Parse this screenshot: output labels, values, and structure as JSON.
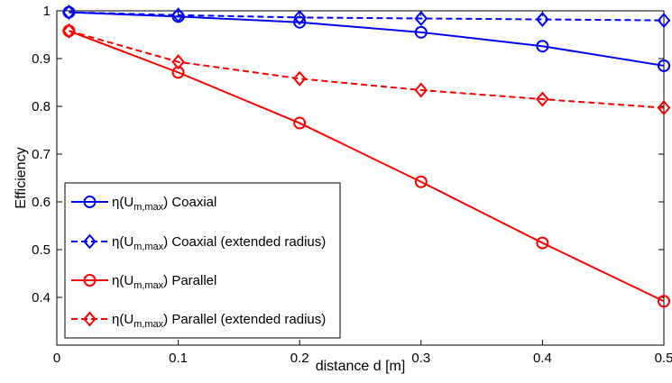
{
  "chart_data": {
    "type": "line",
    "xlabel": "distance d [m]",
    "ylabel": "Efficiency",
    "xlim": [
      0,
      0.5
    ],
    "ylim": [
      0.3,
      1.0
    ],
    "xticks": [
      0,
      0.1,
      0.2,
      0.3,
      0.4,
      0.5
    ],
    "xtick_labels": [
      "0",
      "0.1",
      "0.2",
      "0.3",
      "0.4",
      "0.5"
    ],
    "yticks": [
      0.4,
      0.5,
      0.6,
      0.7,
      0.8,
      0.9,
      1.0
    ],
    "ytick_labels": [
      "0.4",
      "0.5",
      "0.6",
      "0.7",
      "0.8",
      "0.9",
      "1"
    ],
    "x": [
      0.01,
      0.1,
      0.2,
      0.3,
      0.4,
      0.5
    ],
    "grid": false,
    "legend_position": "bottom-left",
    "series": [
      {
        "name": "η(U m,max) Coaxial",
        "legend_main": "η(U",
        "legend_sub": "m,max",
        "legend_rest": ") Coaxial",
        "color": "#0000ff",
        "line_style": "solid",
        "marker": "circle",
        "values": [
          0.997,
          0.988,
          0.976,
          0.955,
          0.926,
          0.885
        ]
      },
      {
        "name": "η(U m,max) Coaxial (extended radius)",
        "legend_main": "η(U",
        "legend_sub": "m,max",
        "legend_rest": ") Coaxial (extended radius)",
        "color": "#0000ff",
        "line_style": "dashed",
        "marker": "diamond",
        "values": [
          0.997,
          0.991,
          0.986,
          0.984,
          0.982,
          0.98
        ]
      },
      {
        "name": "η(U m,max) Parallel",
        "legend_main": "η(U",
        "legend_sub": "m,max",
        "legend_rest": ") Parallel",
        "color": "#ff0000",
        "line_style": "solid",
        "marker": "circle",
        "values": [
          0.958,
          0.871,
          0.765,
          0.642,
          0.514,
          0.392
        ]
      },
      {
        "name": "η(U m,max) Parallel (extended radius)",
        "legend_main": "η(U",
        "legend_sub": "m,max",
        "legend_rest": ") Parallel (extended radius)",
        "color": "#ff0000",
        "line_style": "dashed",
        "marker": "diamond",
        "values": [
          0.958,
          0.893,
          0.858,
          0.834,
          0.815,
          0.797
        ]
      }
    ]
  }
}
